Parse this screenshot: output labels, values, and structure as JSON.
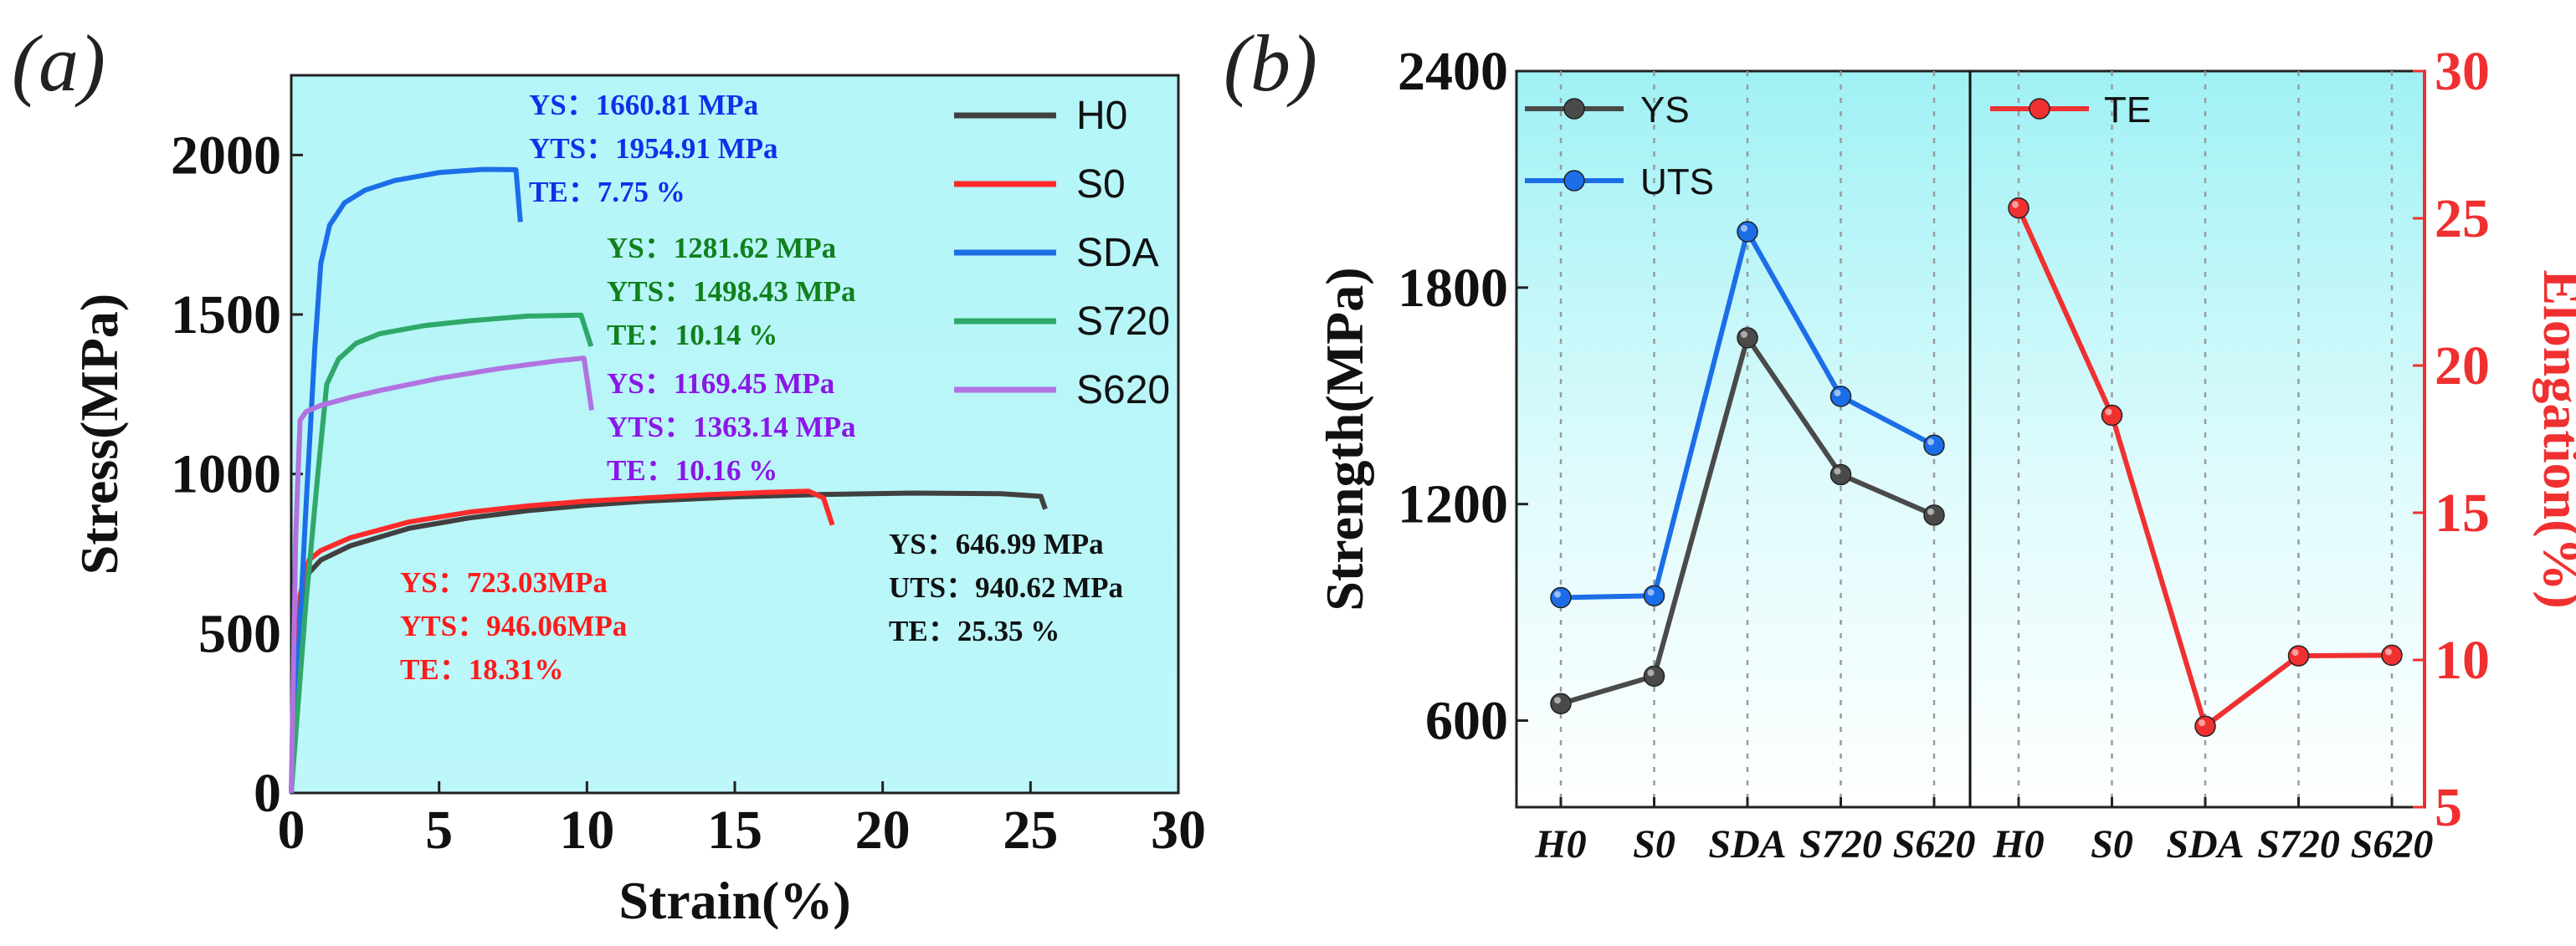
{
  "chart_data": [
    {
      "panel": "(a)",
      "type": "line",
      "xlabel": "Strain(%)",
      "ylabel": "Stress(MPa)",
      "xlim": [
        0,
        30
      ],
      "ylim": [
        0,
        2250
      ],
      "xticks": [
        0,
        5,
        10,
        15,
        20,
        25,
        30
      ],
      "yticks": [
        0,
        500,
        1000,
        1500,
        2000
      ],
      "background": "cyan gradient",
      "legend_position": "top-right",
      "series": [
        {
          "name": "H0",
          "color": "#404040",
          "x": [
            0,
            0.3,
            0.6,
            1,
            2,
            4,
            6,
            8,
            10,
            12,
            15,
            18,
            21,
            24,
            25.35,
            25.5
          ],
          "y": [
            0,
            560,
            690,
            730,
            775,
            830,
            862,
            885,
            902,
            915,
            928,
            936,
            940,
            938,
            930,
            890
          ]
        },
        {
          "name": "S0",
          "color": "#ff2a2a",
          "x": [
            0,
            0.3,
            0.6,
            1,
            2,
            4,
            6,
            8,
            10,
            12,
            14,
            16,
            17.5,
            18.0,
            18.3
          ],
          "y": [
            0,
            620,
            730,
            760,
            800,
            850,
            880,
            900,
            915,
            925,
            935,
            942,
            946,
            925,
            840
          ]
        },
        {
          "name": "SDA",
          "color": "#1c6ee8",
          "x": [
            0,
            0.5,
            0.8,
            1,
            1.3,
            1.8,
            2.5,
            3.5,
            5,
            6.5,
            7.6,
            7.75
          ],
          "y": [
            0,
            900,
            1400,
            1660,
            1780,
            1850,
            1890,
            1920,
            1945,
            1955,
            1954,
            1790
          ]
        },
        {
          "name": "S720",
          "color": "#2fa86a",
          "x": [
            0,
            0.5,
            0.9,
            1.2,
            1.6,
            2.2,
            3,
            4.5,
            6,
            8,
            9.8,
            10.14
          ],
          "y": [
            0,
            600,
            1000,
            1281,
            1360,
            1410,
            1440,
            1465,
            1480,
            1495,
            1498,
            1400
          ]
        },
        {
          "name": "S620",
          "color": "#b173e0",
          "x": [
            0,
            0.15,
            0.3,
            0.5,
            1,
            2,
            3,
            5,
            7,
            9,
            9.9,
            10.16
          ],
          "y": [
            0,
            800,
            1169,
            1195,
            1215,
            1240,
            1262,
            1300,
            1330,
            1355,
            1363,
            1200
          ]
        }
      ],
      "annotations": [
        {
          "series": "SDA",
          "color": "#1030e8",
          "lines": [
            "YS：1660.81 MPa",
            "YTS：1954.91 MPa",
            "TE：7.75 %"
          ]
        },
        {
          "series": "S720",
          "color": "#11801d",
          "lines": [
            "YS：1281.62 MPa",
            "YTS：1498.43 MPa",
            "TE：10.14 %"
          ]
        },
        {
          "series": "S620",
          "color": "#8a16e8",
          "lines": [
            "YS：1169.45 MPa",
            "YTS：1363.14 MPa",
            "TE：10.16 %"
          ]
        },
        {
          "series": "S0",
          "color": "#ff1a1a",
          "lines": [
            "YS：723.03MPa",
            "YTS：946.06MPa",
            "TE：18.31%"
          ]
        },
        {
          "series": "H0",
          "color": "#111111",
          "lines": [
            "YS：646.99 MPa",
            "UTS：940.62 MPa",
            "TE：25.35 %"
          ]
        }
      ]
    },
    {
      "panel": "(b)",
      "type": "line",
      "ylabel_left": "Strength(MPa)",
      "ylabel_right": "Elongation(%)",
      "ylim_left": [
        360,
        2400
      ],
      "yticks_left": [
        600,
        1200,
        1800,
        2400
      ],
      "ylim_right": [
        5,
        30
      ],
      "yticks_right": [
        5,
        10,
        15,
        20,
        25,
        30
      ],
      "categories": [
        "H0",
        "S0",
        "SDA",
        "S720",
        "S620"
      ],
      "strength_series": [
        {
          "name": "YS",
          "color": "#4a4a4a",
          "values": [
            646.99,
            723.03,
            1660.81,
            1281.62,
            1169.45
          ]
        },
        {
          "name": "UTS",
          "color": "#1c6ee8",
          "values": [
            940.62,
            946.06,
            1954.91,
            1498.43,
            1363.14
          ]
        }
      ],
      "elongation_series": [
        {
          "name": "TE",
          "color": "#f03030",
          "values": [
            25.35,
            18.31,
            7.75,
            10.14,
            10.16
          ]
        }
      ]
    }
  ]
}
